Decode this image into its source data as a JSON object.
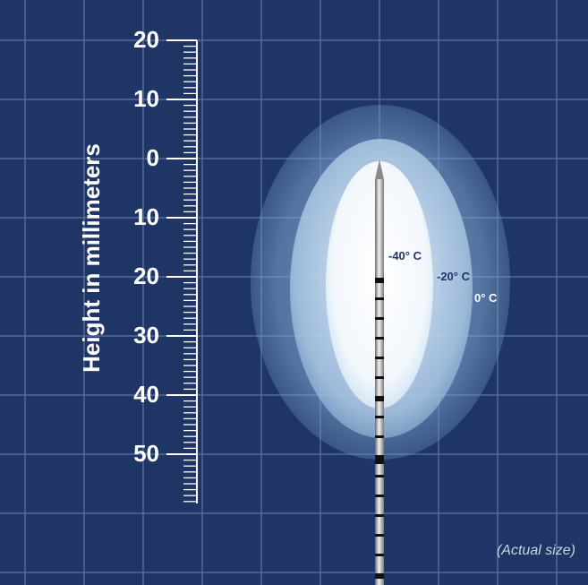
{
  "ruler": {
    "label": "Height in millimeters",
    "ticks": [
      "20",
      "10",
      "0",
      "10",
      "20",
      "30",
      "40",
      "50"
    ]
  },
  "isotherms": [
    "-40° C",
    "-20° C",
    "0° C"
  ],
  "caption": "(Actual size)"
}
